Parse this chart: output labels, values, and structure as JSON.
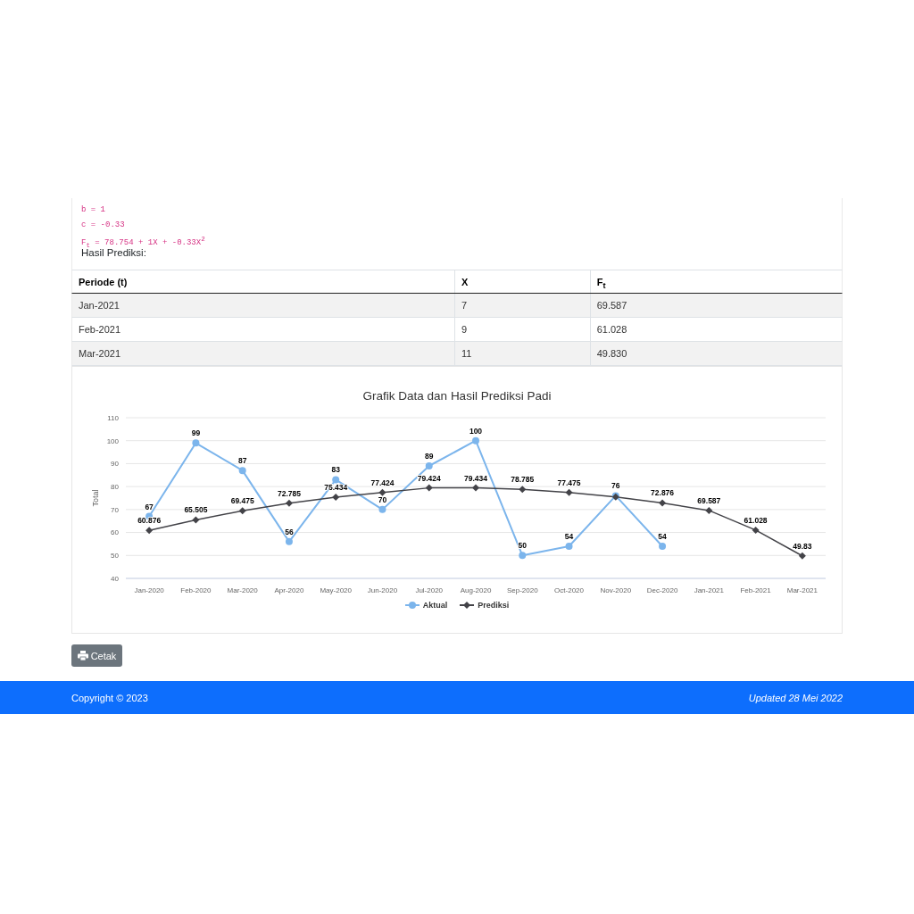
{
  "chart_data": {
    "type": "line",
    "title": "Grafik Data dan Hasil Prediksi Padi",
    "ylabel": "Total",
    "categories": [
      "Jan-2020",
      "Feb-2020",
      "Mar-2020",
      "Apr-2020",
      "May-2020",
      "Jun-2020",
      "Jul-2020",
      "Aug-2020",
      "Sep-2020",
      "Oct-2020",
      "Nov-2020",
      "Dec-2020",
      "Jan-2021",
      "Feb-2021",
      "Mar-2021"
    ],
    "series": [
      {
        "name": "Aktual",
        "color": "#7cb5ec",
        "marker": "circle",
        "values": [
          67,
          99,
          87,
          56,
          83,
          70,
          89,
          100,
          50,
          54,
          76,
          54,
          null,
          null,
          null
        ],
        "value_labels": [
          "67",
          "99",
          "87",
          "56",
          "83",
          "70",
          "89",
          "100",
          "50",
          "54",
          "76",
          "54",
          null,
          null,
          null
        ]
      },
      {
        "name": "Prediksi",
        "color": "#434348",
        "marker": "diamond",
        "values": [
          60.876,
          65.505,
          69.475,
          72.785,
          75.434,
          77.424,
          79.424,
          79.434,
          78.785,
          77.475,
          75.5,
          72.876,
          69.587,
          61.028,
          49.83
        ],
        "value_labels": [
          "60.876",
          "65.505",
          "69.475",
          "72.785",
          "75.434",
          "77.424",
          "79.424",
          "79.434",
          "78.785",
          "77.475",
          null,
          "72.876",
          "69.587",
          "61.028",
          "49.83"
        ]
      }
    ],
    "ylim": [
      40,
      110
    ],
    "yticks": [
      40,
      50,
      60,
      70,
      80,
      90,
      100,
      110
    ],
    "grid": "y",
    "legend": "bottom",
    "annotations": [
      "b = 1",
      "c = -0.33",
      "F$_{t}$ = 78.754 + 1X + -0.33X$^{2}$",
      "Hasil Prediksi:",
      "Periode (t)",
      "X",
      "F$_{t}$",
      "Jan-2021",
      "7",
      "69.587",
      "Feb-2021",
      "9",
      "61.028",
      "Mar-2021",
      "11",
      "49.830",
      "Cetak",
      "Copyright © 2023",
      "Updated 28 Mei 2022"
    ]
  }
}
